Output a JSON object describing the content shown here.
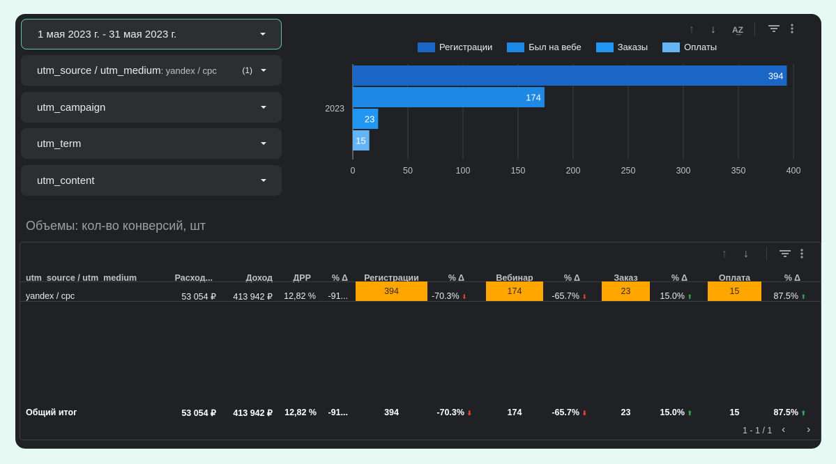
{
  "filters": {
    "date_range": "1 мая 2023 г. - 31 мая 2023 г.",
    "utm_source_medium": {
      "label": "utm_source / utm_medium",
      "value": ": yandex / cpc",
      "count": "(1)"
    },
    "utm_campaign": "utm_campaign",
    "utm_term": "utm_term",
    "utm_content": "utm_content"
  },
  "chart_icons": [
    "arrow-up-icon",
    "arrow-down-icon",
    "sort-az-icon",
    "filter-icon",
    "more-vert-icon"
  ],
  "chart_data": {
    "type": "bar",
    "orientation": "horizontal",
    "categories": [
      "2023"
    ],
    "series": [
      {
        "name": "Регистрации",
        "values": [
          394
        ],
        "color": "#1a66c7"
      },
      {
        "name": "Был на вебе",
        "values": [
          174
        ],
        "color": "#1e88e5"
      },
      {
        "name": "Заказы",
        "values": [
          23
        ],
        "color": "#2196f3"
      },
      {
        "name": "Оплаты",
        "values": [
          15
        ],
        "color": "#64b5f6"
      }
    ],
    "xlim": [
      0,
      400
    ],
    "xticks": [
      "0",
      "50",
      "100",
      "150",
      "200",
      "250",
      "300",
      "350",
      "400"
    ],
    "legend_position": "top",
    "grid": true
  },
  "section_title": "Объемы: кол-во конверсий, шт",
  "table": {
    "headers": [
      "utm_source / utm_medium",
      "Расход...",
      "Доход",
      "ДРР",
      "% Δ",
      "Регистрации",
      "% Δ",
      "Вебинар",
      "% Δ",
      "Заказ",
      "% Δ",
      "Оплата",
      "% Δ"
    ],
    "row": {
      "source": "yandex / cpc",
      "spend": "53 054 ₽",
      "revenue": "413 942 ₽",
      "drr": "12,82 %",
      "d1": "-91...",
      "registrations": "394",
      "d2": "-70.3%",
      "webinar": "174",
      "d3": "-65.7%",
      "orders": "23",
      "d4": "15.0%",
      "payments": "15",
      "d5": "87.5%"
    },
    "total": {
      "label": "Общий итог",
      "spend": "53 054 ₽",
      "revenue": "413 942 ₽",
      "drr": "12,82 %",
      "d1": "-91...",
      "registrations": "394",
      "d2": "-70.3%",
      "webinar": "174",
      "d3": "-65.7%",
      "orders": "23",
      "d4": "15.0%",
      "payments": "15",
      "d5": "87.5%"
    },
    "pagination": "1 - 1 / 1",
    "highlight_color": "#ffa500"
  }
}
